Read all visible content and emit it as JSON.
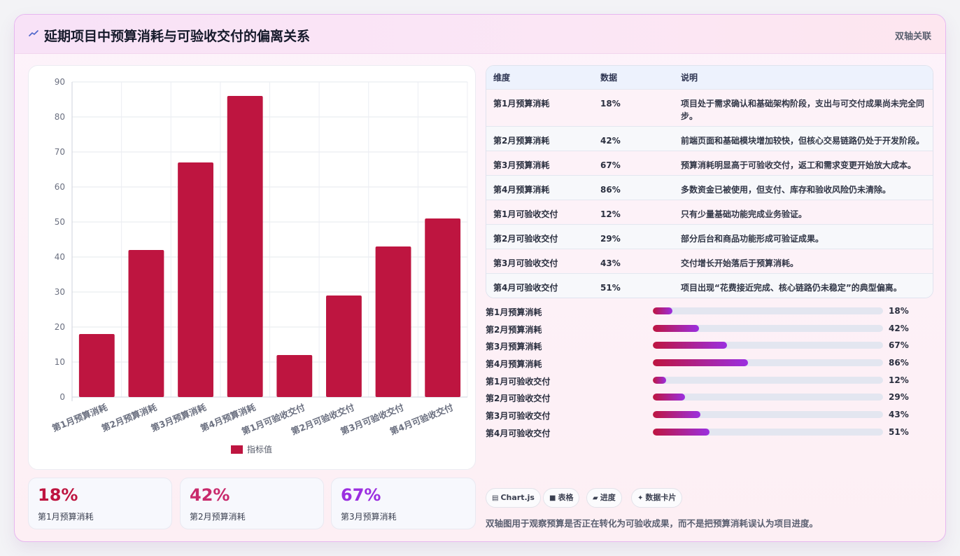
{
  "header": {
    "icon": "trend-line-icon",
    "title": "延期项目中预算消耗与可验收交付的偏离关系",
    "tag": "双轴关联"
  },
  "chart_data": {
    "type": "bar",
    "categories": [
      "第1月预算消耗",
      "第2月预算消耗",
      "第3月预算消耗",
      "第4月预算消耗",
      "第1月可验收交付",
      "第2月可验收交付",
      "第3月可验收交付",
      "第4月可验收交付"
    ],
    "series": [
      {
        "name": "指标值",
        "values": [
          18,
          42,
          67,
          86,
          12,
          29,
          43,
          51
        ]
      }
    ],
    "ylim": [
      0,
      90
    ],
    "yticks": [
      0,
      10,
      20,
      30,
      40,
      50,
      60,
      70,
      80,
      90
    ],
    "grid": true,
    "legend_position": "bottom",
    "bar_color": "#be1540"
  },
  "stats": [
    {
      "value": "18%",
      "label": "第1月预算消耗",
      "color": "#be1540"
    },
    {
      "value": "42%",
      "label": "第2月预算消耗",
      "color": "#c82a6c"
    },
    {
      "value": "67%",
      "label": "第3月预算消耗",
      "color": "#9b2fe0"
    }
  ],
  "table": {
    "headers": [
      "维度",
      "数据",
      "说明"
    ],
    "rows": [
      [
        "第1月预算消耗",
        "18%",
        "项目处于需求确认和基础架构阶段，支出与可交付成果尚未完全同步。"
      ],
      [
        "第2月预算消耗",
        "42%",
        "前端页面和基础模块增加较快，但核心交易链路仍处于开发阶段。"
      ],
      [
        "第3月预算消耗",
        "67%",
        "预算消耗明显高于可验收交付，返工和需求变更开始放大成本。"
      ],
      [
        "第4月预算消耗",
        "86%",
        "多数资金已被使用，但支付、库存和验收风险仍未清除。"
      ],
      [
        "第1月可验收交付",
        "12%",
        "只有少量基础功能完成业务验证。"
      ],
      [
        "第2月可验收交付",
        "29%",
        "部分后台和商品功能形成可验证成果。"
      ],
      [
        "第3月可验收交付",
        "43%",
        "交付增长开始落后于预算消耗。"
      ],
      [
        "第4月可验收交付",
        "51%",
        "项目出现“花费接近完成、核心链路仍未稳定”的典型偏离。"
      ]
    ]
  },
  "progress": [
    {
      "label": "第1月预算消耗",
      "value": 18,
      "text": "18%"
    },
    {
      "label": "第2月预算消耗",
      "value": 42,
      "text": "42%"
    },
    {
      "label": "第3月预算消耗",
      "value": 67,
      "text": "67%"
    },
    {
      "label": "第4月预算消耗",
      "value": 86,
      "text": "86%"
    },
    {
      "label": "第1月可验收交付",
      "value": 12,
      "text": "12%"
    },
    {
      "label": "第2月可验收交付",
      "value": 29,
      "text": "29%"
    },
    {
      "label": "第3月可验收交付",
      "value": 43,
      "text": "43%"
    },
    {
      "label": "第4月可验收交付",
      "value": 51,
      "text": "51%"
    }
  ],
  "chips": [
    {
      "icon": "▤",
      "label": "Chart.js"
    },
    {
      "icon": "■",
      "label": "表格"
    },
    {
      "icon": "▰",
      "label": "进度"
    },
    {
      "icon": "✦",
      "label": "数据卡片"
    }
  ],
  "footnote": "双轴图用于观察预算是否正在转化为可验收成果，而不是把预算消耗误认为项目进度。"
}
